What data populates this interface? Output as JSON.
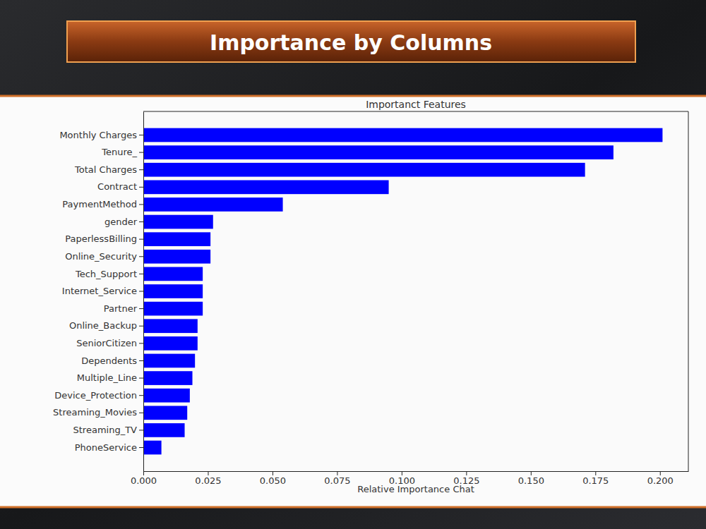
{
  "slide": {
    "title": "Importance by Columns"
  },
  "chart_data": {
    "type": "bar",
    "orientation": "horizontal",
    "title": "Importanct Features",
    "xlabel": "Relative Importance Chat",
    "categories": [
      "Monthly Charges",
      "Tenure_",
      "Total Charges",
      "Contract",
      "PaymentMethod",
      "gender",
      "PaperlessBilling",
      "Online_Security",
      "Tech_Support",
      "Internet_Service",
      "Partner",
      "Online_Backup",
      "SeniorCitizen",
      "Dependents",
      "Multiple_Line",
      "Device_Protection",
      "Streaming_Movies",
      "Streaming_TV",
      "PhoneService"
    ],
    "values": [
      0.201,
      0.182,
      0.171,
      0.095,
      0.054,
      0.027,
      0.026,
      0.026,
      0.023,
      0.023,
      0.023,
      0.021,
      0.021,
      0.02,
      0.019,
      0.018,
      0.017,
      0.016,
      0.007
    ],
    "color": "#0000ff",
    "grid": false,
    "xlim": [
      0,
      0.211
    ],
    "xticks": [
      {
        "value": 0,
        "label": "0.000"
      },
      {
        "value": 0.025,
        "label": "0.025"
      },
      {
        "value": 0.05,
        "label": "0.050"
      },
      {
        "value": 0.075,
        "label": "0.075"
      },
      {
        "value": 0.1,
        "label": "0.100"
      },
      {
        "value": 0.125,
        "label": "0.125"
      },
      {
        "value": 0.15,
        "label": "0.150"
      },
      {
        "value": 0.175,
        "label": "0.175"
      },
      {
        "value": 0.2,
        "label": "0.200"
      }
    ]
  }
}
